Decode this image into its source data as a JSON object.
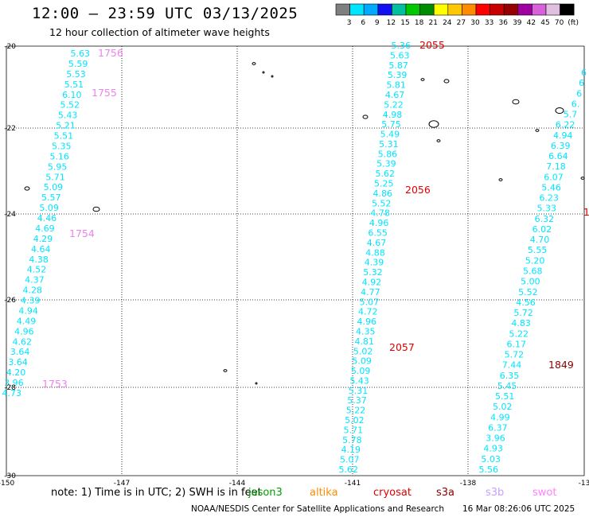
{
  "title": "12:00 — 23:59 UTC 03/13/2025",
  "subtitle": "12 hour collection of altimeter wave heights",
  "colorbar": {
    "colors": [
      "#7f7f7f",
      "#00e5ff",
      "#00a8ff",
      "#1010f0",
      "#00c0a0",
      "#00c800",
      "#008c00",
      "#ffff00",
      "#ffc800",
      "#ff8c00",
      "#ff0000",
      "#c80000",
      "#960000",
      "#a000a0",
      "#d860d8",
      "#e0c0e0",
      "#000000"
    ],
    "labels": [
      "3",
      "6",
      "9",
      "12",
      "15",
      "18",
      "21",
      "24",
      "27",
      "30",
      "33",
      "36",
      "39",
      "42",
      "45",
      "70",
      "(ft)"
    ]
  },
  "axes": {
    "lon_ticks": [
      "-150",
      "-147",
      "-144",
      "-141",
      "-138",
      "-13"
    ],
    "lat_ticks": [
      "-20",
      "-22",
      "-24",
      "-26",
      "-28",
      "-30"
    ]
  },
  "tracks": [
    {
      "name": "track-1753",
      "color": "#00e5ff",
      "values": [
        "5.63",
        "5.59",
        "5.53",
        "5.51",
        "6.10",
        "5.52",
        "5.43",
        "5.21",
        "5.51",
        "5.35",
        "5.16",
        "5.95",
        "5.71",
        "5.09",
        "5.57",
        "5.09",
        "4.46",
        "4.69",
        "4.29",
        "4.64",
        "4.38",
        "4.52",
        "4.37",
        "4.28",
        "4.39",
        "4.94",
        "4.49",
        "4.96",
        "4.62",
        "3.64",
        "3.64",
        "4.20",
        "3.96",
        "4.73"
      ],
      "times": [
        {
          "text": "1756",
          "color": "#ee82ee"
        },
        {
          "text": "1755",
          "color": "#ee82ee"
        },
        {
          "text": "1754",
          "color": "#ee82ee"
        },
        {
          "text": "1753",
          "color": "#ee82ee"
        }
      ]
    },
    {
      "name": "track-2055",
      "color": "#00e5ff",
      "values": [
        "5.36",
        "5.63",
        "5.87",
        "5.39",
        "5.81",
        "4.67",
        "5.22",
        "4.98",
        "5.75",
        "5.49",
        "5.31",
        "5.86",
        "5.39",
        "5.62",
        "5.25",
        "4.86",
        "5.52",
        "4.78",
        "4.96",
        "6.55",
        "4.67",
        "4.88",
        "4.39",
        "5.32",
        "4.92",
        "4.77",
        "5.07",
        "4.72",
        "4.96",
        "4.35",
        "4.81",
        "5.02",
        "5.09",
        "5.09",
        "5.43",
        "5.31",
        "5.37",
        "5.22",
        "5.02",
        "5.71",
        "5.78",
        "4.19",
        "5.07",
        "5.62"
      ],
      "times": [
        {
          "text": "2055",
          "color": "#e00000"
        },
        {
          "text": "2056",
          "color": "#e00000"
        },
        {
          "text": "2057",
          "color": "#e00000"
        }
      ]
    },
    {
      "name": "track-1849",
      "color": "#00e5ff",
      "values": [
        "6",
        "6",
        "6",
        "6.",
        "5.7",
        "6.22",
        "4.94",
        "6.39",
        "6.64",
        "7.18",
        "6.07",
        "5.46",
        "6.23",
        "5.33",
        "6.32",
        "6.02",
        "4.70",
        "5.55",
        "5.20",
        "5.68",
        "5.00",
        "5.52",
        "4.56",
        "5.72",
        "4.83",
        "5.22",
        "6.17",
        "5.72",
        "7.44",
        "6.35",
        "5.45",
        "5.51",
        "5.02",
        "4.99",
        "6.37",
        "3.96",
        "4.93",
        "5.03",
        "5.56"
      ],
      "times": [
        {
          "text": "1",
          "color": "#e00000"
        },
        {
          "text": "1849",
          "color": "#8b0000"
        }
      ]
    }
  ],
  "note": "note: 1) Time is in UTC; 2) SWH is in feet",
  "satellites": [
    {
      "name": "jason3",
      "color": "#00a000"
    },
    {
      "name": "altika",
      "color": "#ff8c00"
    },
    {
      "name": "cryosat",
      "color": "#e00000"
    },
    {
      "name": "s3a",
      "color": "#8b0000"
    },
    {
      "name": "s3b",
      "color": "#c8a0ff"
    },
    {
      "name": "swot",
      "color": "#ff80ff"
    }
  ],
  "footer": "NOAA/NESDIS Center for Satellite Applications and Research",
  "timestamp": "16 Mar 08:26:06 UTC 2025"
}
